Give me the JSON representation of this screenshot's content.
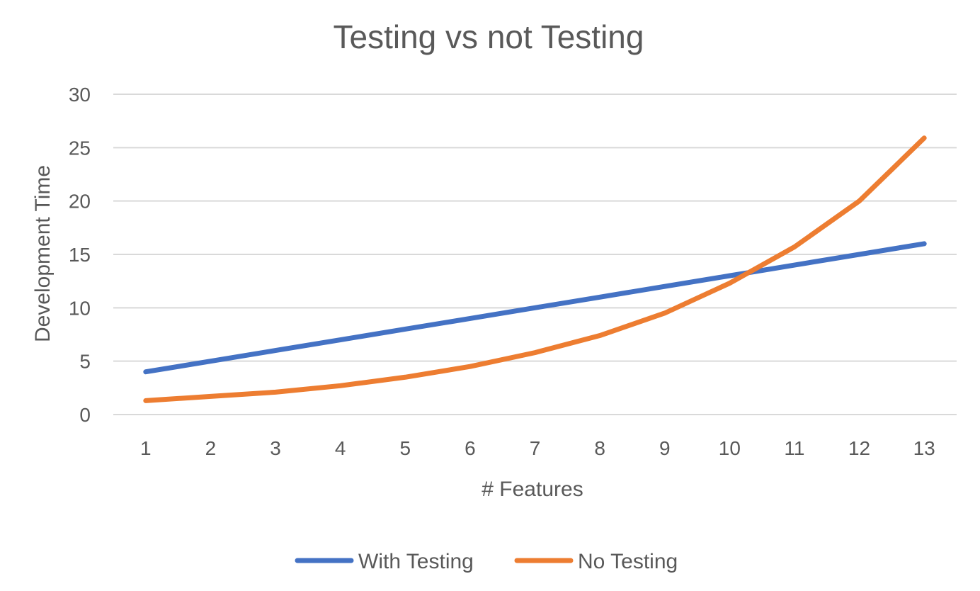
{
  "chart_data": {
    "type": "line",
    "title": "Testing vs not Testing",
    "xlabel": "# Features",
    "ylabel": "Development Time",
    "categories": [
      "1",
      "2",
      "3",
      "4",
      "5",
      "6",
      "7",
      "8",
      "9",
      "10",
      "11",
      "12",
      "13"
    ],
    "ylim": [
      0,
      30
    ],
    "yticks": [
      "0",
      "5",
      "10",
      "15",
      "20",
      "25",
      "30"
    ],
    "grid": true,
    "legend_position": "bottom",
    "series": [
      {
        "name": "With Testing",
        "color": "#4472c4",
        "values": [
          4,
          5,
          6,
          7,
          8,
          9,
          10,
          11,
          12,
          13,
          14,
          15,
          16
        ]
      },
      {
        "name": "No Testing",
        "color": "#ed7d31",
        "values": [
          1.3,
          1.7,
          2.1,
          2.7,
          3.5,
          4.5,
          5.8,
          7.4,
          9.5,
          12.3,
          15.7,
          20.0,
          25.9
        ]
      }
    ]
  }
}
